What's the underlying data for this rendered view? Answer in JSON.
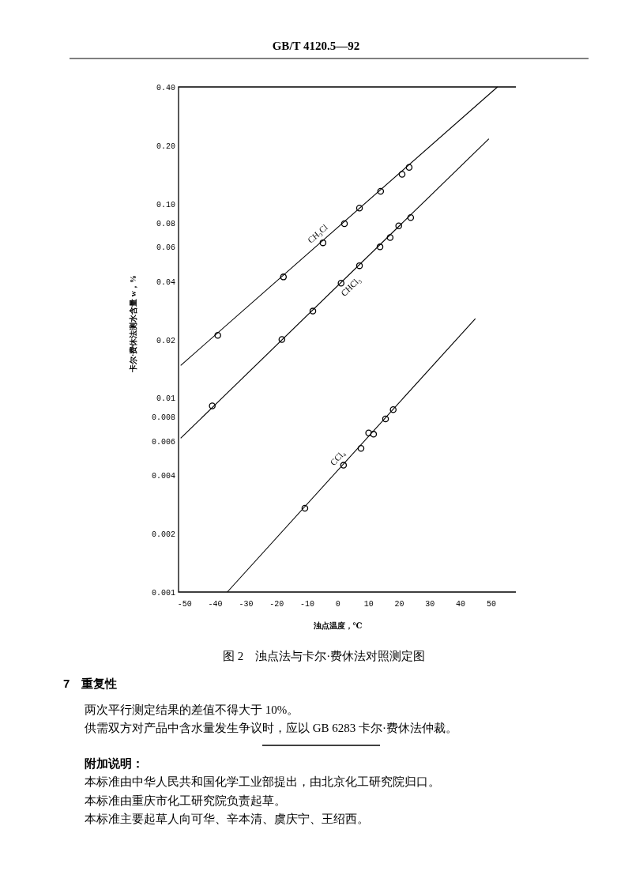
{
  "chart_data": {
    "type": "scatter",
    "title": "图 2　浊点法与卡尔·费休法对照测定图",
    "xlabel": "浊点温度，℃",
    "ylabel": "卡尔·费休法测水含量 w，%",
    "log": "y",
    "xlim": [
      -52,
      58
    ],
    "ylim": [
      0.001,
      0.4
    ],
    "xticks": [
      -50,
      -40,
      -30,
      -20,
      -10,
      0,
      10,
      20,
      30,
      40,
      50
    ],
    "yticks": [
      {
        "value": 0.4,
        "label": "0.40"
      },
      {
        "value": 0.2,
        "label": "0.20"
      },
      {
        "value": 0.1,
        "label": "0.10"
      },
      0.08,
      0.06,
      0.04,
      0.02,
      0.01,
      0.008,
      0.006,
      0.004,
      0.002,
      0.001
    ],
    "series": [
      {
        "type": "scatter",
        "color": "#000000",
        "marker": "circle",
        "x": [
          -39.2,
          -17.8,
          -4.9,
          2.1,
          7.0,
          13.9,
          20.9,
          23.2
        ],
        "values": [
          0.021,
          0.042,
          0.063,
          0.079,
          0.095,
          0.116,
          0.142,
          0.154
        ]
      },
      {
        "type": "line",
        "name": "CH₃Cl",
        "color": "#000000",
        "x": [
          -51.3,
          52
        ],
        "values": [
          0.0147,
          0.4
        ]
      },
      {
        "type": "scatter",
        "color": "#000000",
        "marker": "circle",
        "x": [
          -41,
          -18.3,
          -8.2,
          1.0,
          7.0,
          13.7,
          17.0,
          19.8,
          23.7
        ],
        "values": [
          0.0091,
          0.02,
          0.028,
          0.039,
          0.048,
          0.06,
          0.067,
          0.077,
          0.085
        ]
      },
      {
        "type": "line",
        "name": "CHCl₃",
        "color": "#000000",
        "x": [
          -51.3,
          49.2
        ],
        "values": [
          0.0062,
          0.216
        ]
      },
      {
        "type": "scatter",
        "color": "#000000",
        "marker": "circle",
        "x": [
          -10.8,
          1.8,
          7.5,
          10.0,
          11.6,
          15.5,
          18.0
        ],
        "values": [
          0.0027,
          0.0045,
          0.0055,
          0.0066,
          0.0065,
          0.0078,
          0.0087
        ]
      },
      {
        "type": "line",
        "name": "CCl₄",
        "color": "#000000",
        "x": [
          -36.1,
          44.8
        ],
        "values": [
          0.001,
          0.0256
        ]
      }
    ],
    "annotations": [
      "GB/T 4120.5—92",
      "7　重复性",
      "两次平行测定结果的差值不得大于 10%。",
      "供需双方对产品中含水量发生争议时，应以 GB 6283 卡尔·费休法仲裁。",
      "附加说明：",
      "本标准由中华人民共和国化学工业部提出，由北京化工研究院归口。",
      "本标准由重庆市化工研究院负责起草。",
      "本标准主要起草人向可华、辛本清、虞庆宁、王绍西。"
    ]
  }
}
